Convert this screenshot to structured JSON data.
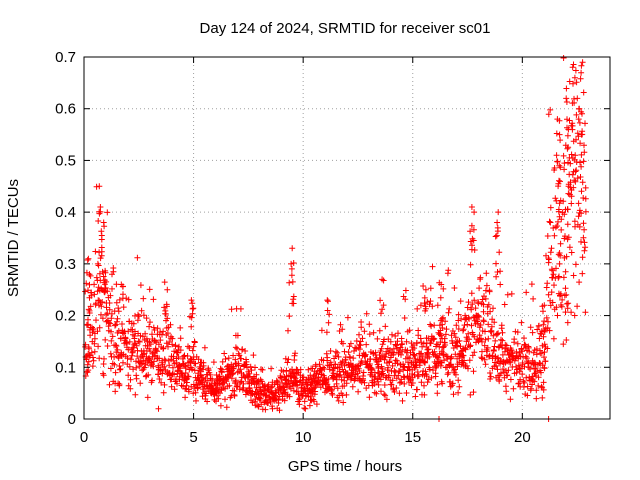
{
  "chart_data": {
    "type": "scatter",
    "title": "Day 124 of 2024, SRMTID for receiver sc01",
    "xlabel": "GPS time / hours",
    "ylabel": "SRMTID / TECUs",
    "xlim": [
      0,
      24
    ],
    "ylim": [
      0,
      0.7
    ],
    "xticks": [
      0,
      5,
      10,
      15,
      20
    ],
    "yticks": [
      0,
      0.1,
      0.2,
      0.3,
      0.4,
      0.5,
      0.6,
      0.7
    ],
    "grid": true,
    "marker": "+",
    "color": "#ff0000",
    "series": [
      {
        "name": "SRMTID",
        "profile_x": [
          0,
          0.3,
          0.7,
          1.0,
          1.5,
          2.0,
          3.0,
          4.0,
          5.0,
          6.0,
          7.0,
          8.0,
          8.7,
          9.5,
          10.0,
          11.0,
          12.0,
          13.0,
          14.0,
          15.0,
          16.0,
          17.0,
          17.5,
          18.0,
          18.5,
          19.0,
          20.0,
          21.0,
          21.2,
          21.5,
          22.0,
          22.5,
          22.9
        ],
        "profile_y": [
          0.13,
          0.17,
          0.25,
          0.2,
          0.15,
          0.14,
          0.12,
          0.11,
          0.09,
          0.06,
          0.1,
          0.05,
          0.045,
          0.08,
          0.06,
          0.08,
          0.1,
          0.1,
          0.1,
          0.11,
          0.13,
          0.12,
          0.15,
          0.17,
          0.16,
          0.12,
          0.11,
          0.11,
          0.25,
          0.33,
          0.42,
          0.47,
          0.45
        ],
        "spikes": [
          {
            "x": 0.7,
            "y": 0.45
          },
          {
            "x": 0.75,
            "y": 0.41
          },
          {
            "x": 0.9,
            "y": 0.38
          },
          {
            "x": 0.2,
            "y": 0.31
          },
          {
            "x": 0.25,
            "y": 0.28
          },
          {
            "x": 1.7,
            "y": 0.26
          },
          {
            "x": 3.8,
            "y": 0.25
          },
          {
            "x": 4.9,
            "y": 0.23
          },
          {
            "x": 9.5,
            "y": 0.33
          },
          {
            "x": 9.45,
            "y": 0.3
          },
          {
            "x": 11.1,
            "y": 0.23
          },
          {
            "x": 13.6,
            "y": 0.27
          },
          {
            "x": 15.6,
            "y": 0.25
          },
          {
            "x": 16.3,
            "y": 0.26
          },
          {
            "x": 17.7,
            "y": 0.41
          },
          {
            "x": 17.8,
            "y": 0.4
          },
          {
            "x": 18.9,
            "y": 0.4
          },
          {
            "x": 18.85,
            "y": 0.38
          },
          {
            "x": 21.0,
            "y": 0.22
          },
          {
            "x": 21.6,
            "y": 0.58
          },
          {
            "x": 21.7,
            "y": 0.55
          },
          {
            "x": 22.0,
            "y": 0.62
          },
          {
            "x": 22.3,
            "y": 0.68
          },
          {
            "x": 22.4,
            "y": 0.66
          },
          {
            "x": 22.75,
            "y": 0.69
          },
          {
            "x": 22.6,
            "y": 0.6
          },
          {
            "x": 22.7,
            "y": 0.55
          },
          {
            "x": 22.1,
            "y": 0.56
          },
          {
            "x": 22.0,
            "y": 0.24
          },
          {
            "x": 21.7,
            "y": 0.3
          },
          {
            "x": 16.2,
            "y": 0.0
          },
          {
            "x": 21.2,
            "y": 0.0
          },
          {
            "x": 3.4,
            "y": 0.02
          },
          {
            "x": 10.1,
            "y": 0.02
          },
          {
            "x": 8.6,
            "y": 0.02
          }
        ]
      }
    ]
  }
}
